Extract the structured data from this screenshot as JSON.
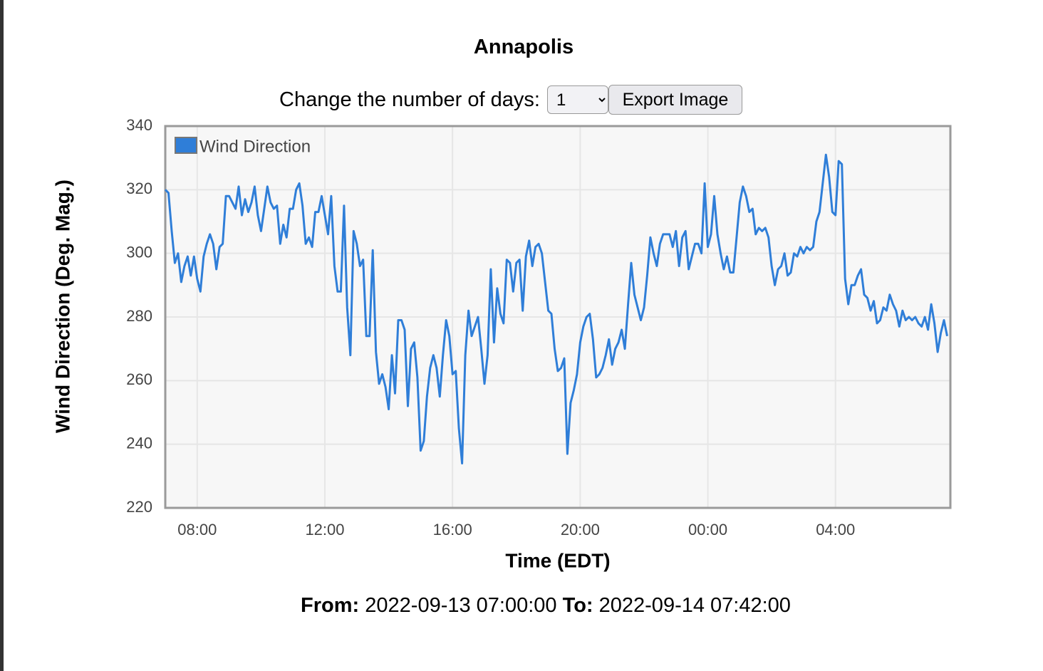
{
  "header": {
    "title": "Annapolis"
  },
  "controls": {
    "label": "Change the number of days:",
    "days": "1",
    "button": "Export Image"
  },
  "chart_data": {
    "type": "line",
    "y_label": "Wind Direction (Deg. Mag.)",
    "x_label": "Time (EDT)",
    "x": [
      7.0,
      7.1,
      7.2,
      7.3,
      7.4,
      7.5,
      7.6,
      7.7,
      7.8,
      7.9,
      8.0,
      8.1,
      8.2,
      8.3,
      8.4,
      8.5,
      8.6,
      8.7,
      8.8,
      8.9,
      9.0,
      9.1,
      9.2,
      9.3,
      9.4,
      9.5,
      9.6,
      9.7,
      9.8,
      9.9,
      10.0,
      10.1,
      10.2,
      10.3,
      10.4,
      10.5,
      10.6,
      10.7,
      10.8,
      10.9,
      11.0,
      11.1,
      11.2,
      11.3,
      11.4,
      11.5,
      11.6,
      11.7,
      11.8,
      11.9,
      12.0,
      12.1,
      12.2,
      12.3,
      12.4,
      12.5,
      12.6,
      12.7,
      12.8,
      12.9,
      13.0,
      13.1,
      13.2,
      13.3,
      13.4,
      13.5,
      13.6,
      13.7,
      13.8,
      13.9,
      14.0,
      14.1,
      14.2,
      14.3,
      14.4,
      14.5,
      14.6,
      14.7,
      14.8,
      14.9,
      15.0,
      15.1,
      15.2,
      15.3,
      15.4,
      15.5,
      15.6,
      15.7,
      15.8,
      15.9,
      16.0,
      16.1,
      16.2,
      16.3,
      16.4,
      16.5,
      16.6,
      16.7,
      16.8,
      16.9,
      17.0,
      17.1,
      17.2,
      17.3,
      17.4,
      17.5,
      17.6,
      17.7,
      17.8,
      17.9,
      18.0,
      18.1,
      18.2,
      18.3,
      18.4,
      18.5,
      18.6,
      18.7,
      18.8,
      18.9,
      19.0,
      19.1,
      19.2,
      19.3,
      19.4,
      19.5,
      19.6,
      19.7,
      19.8,
      19.9,
      20.0,
      20.1,
      20.2,
      20.3,
      20.4,
      20.5,
      20.6,
      20.7,
      20.8,
      20.9,
      21.0,
      21.1,
      21.2,
      21.3,
      21.4,
      21.5,
      21.6,
      21.7,
      21.8,
      21.9,
      22.0,
      22.1,
      22.2,
      22.3,
      22.4,
      22.5,
      22.6,
      22.7,
      22.8,
      22.9,
      23.0,
      23.1,
      23.2,
      23.3,
      23.4,
      23.5,
      23.6,
      23.7,
      23.8,
      23.9,
      24.0,
      24.1,
      24.2,
      24.3,
      24.4,
      24.5,
      24.6,
      24.7,
      24.8,
      24.9,
      25.0,
      25.1,
      25.2,
      25.3,
      25.4,
      25.5,
      25.6,
      25.7,
      25.8,
      25.9,
      26.0,
      26.1,
      26.2,
      26.3,
      26.4,
      26.5,
      26.6,
      26.7,
      26.8,
      26.9,
      27.0,
      27.1,
      27.2,
      27.3,
      27.4,
      27.5,
      27.6,
      27.7,
      27.8,
      27.9,
      28.0,
      28.1,
      28.2,
      28.3,
      28.4,
      28.5,
      28.6,
      28.7,
      28.8,
      28.9,
      29.0,
      29.1,
      29.2,
      29.3,
      29.4,
      29.5,
      29.6,
      29.7,
      29.8,
      29.9,
      30.0,
      30.1,
      30.2,
      30.3,
      30.4,
      30.5,
      30.6,
      30.7,
      30.8,
      30.9,
      31.0,
      31.1,
      31.2,
      31.3,
      31.4,
      31.5
    ],
    "series": [
      {
        "name": "Wind Direction",
        "color": "#2f7ed8",
        "values": [
          320,
          319,
          307,
          297,
          300,
          291,
          296,
          299,
          293,
          299,
          292,
          288,
          299,
          303,
          306,
          303,
          295,
          302,
          303,
          318,
          318,
          316,
          314,
          321,
          312,
          317,
          313,
          316,
          321,
          312,
          307,
          314,
          321,
          316,
          314,
          315,
          303,
          309,
          305,
          314,
          314,
          320,
          322,
          315,
          303,
          305,
          302,
          313,
          313,
          318,
          312,
          306,
          318,
          296,
          288,
          288,
          315,
          283,
          268,
          307,
          303,
          296,
          298,
          274,
          274,
          301,
          269,
          259,
          262,
          258,
          251,
          268,
          256,
          279,
          279,
          276,
          252,
          270,
          272,
          261,
          238,
          241,
          255,
          264,
          268,
          264,
          255,
          268,
          279,
          274,
          262,
          263,
          245,
          234,
          268,
          282,
          274,
          277,
          280,
          270,
          259,
          268,
          295,
          272,
          289,
          281,
          278,
          298,
          297,
          288,
          297,
          298,
          282,
          299,
          304,
          296,
          302,
          303,
          300,
          291,
          282,
          281,
          270,
          263,
          264,
          267,
          237,
          253,
          257,
          262,
          272,
          277,
          280,
          281,
          273,
          261,
          262,
          264,
          268,
          273,
          265,
          270,
          272,
          276,
          270,
          284,
          297,
          287,
          283,
          279,
          283,
          293,
          305,
          300,
          296,
          303,
          306,
          306,
          306,
          302,
          307,
          296,
          305,
          307,
          295,
          299,
          303,
          303,
          300,
          322,
          302,
          306,
          318,
          306,
          300,
          295,
          299,
          294,
          294,
          305,
          316,
          321,
          318,
          313,
          314,
          306,
          308,
          307,
          308,
          305,
          296,
          290,
          295,
          296,
          300,
          293,
          294,
          300,
          299,
          302,
          300,
          302,
          301,
          302,
          310,
          313,
          322,
          331,
          324,
          313,
          312,
          329,
          328,
          292,
          284,
          290,
          290,
          293,
          295,
          287,
          286,
          282,
          285,
          278,
          279,
          283,
          282,
          287,
          284,
          282,
          277,
          282,
          279,
          280,
          279,
          280,
          278,
          277,
          280,
          276,
          284,
          278,
          269,
          275,
          279,
          274
        ]
      }
    ],
    "xlim": [
      7,
      31.6
    ],
    "xticks": [
      {
        "value": 8,
        "label": "08:00"
      },
      {
        "value": 12,
        "label": "12:00"
      },
      {
        "value": 16,
        "label": "16:00"
      },
      {
        "value": 20,
        "label": "20:00"
      },
      {
        "value": 24,
        "label": "00:00"
      },
      {
        "value": 28,
        "label": "04:00"
      }
    ],
    "ylim": [
      220,
      340
    ],
    "yticks": [
      220,
      240,
      260,
      280,
      300,
      320,
      340
    ],
    "grid": true,
    "legend": "upper left"
  },
  "footer": {
    "from_label": "From:",
    "from": "2022-09-13 07:00:00",
    "to_label": "To:",
    "to": "2022-09-14 07:42:00"
  }
}
